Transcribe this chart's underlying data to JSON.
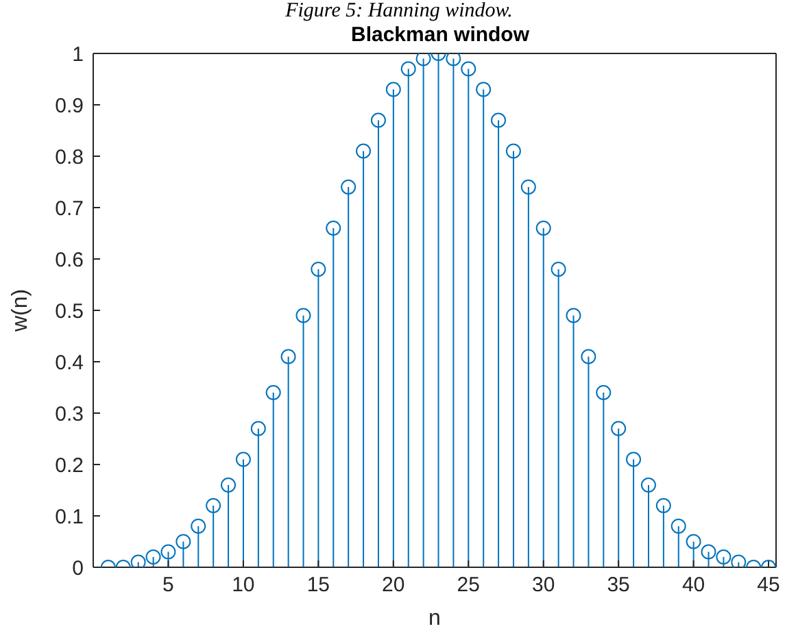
{
  "chart_data": {
    "type": "lollipop",
    "title": "Blackman window",
    "xlabel": "n",
    "ylabel": "w(n)",
    "annotations": [
      "Figure 5: Hanning window."
    ],
    "x": [
      1,
      2,
      3,
      4,
      5,
      6,
      7,
      8,
      9,
      10,
      11,
      12,
      13,
      14,
      15,
      16,
      17,
      18,
      19,
      20,
      21,
      22,
      23,
      24,
      25,
      26,
      27,
      28,
      29,
      30,
      31,
      32,
      33,
      34,
      35,
      36,
      37,
      38,
      39,
      40,
      41,
      42,
      43,
      44,
      45
    ],
    "series": [
      {
        "color": "#0072bd",
        "values": [
          0,
          0,
          0.01,
          0.02,
          0.03,
          0.05,
          0.08,
          0.12,
          0.16,
          0.21,
          0.27,
          0.34,
          0.41,
          0.49,
          0.58,
          0.66,
          0.74,
          0.81,
          0.87,
          0.93,
          0.97,
          0.99,
          1,
          0.99,
          0.97,
          0.93,
          0.87,
          0.81,
          0.74,
          0.66,
          0.58,
          0.49,
          0.41,
          0.34,
          0.27,
          0.21,
          0.16,
          0.12,
          0.08,
          0.05,
          0.03,
          0.02,
          0.01,
          0,
          0
        ]
      }
    ],
    "xlim": [
      0,
      45.5
    ],
    "xticks": [
      5,
      10,
      15,
      20,
      25,
      30,
      35,
      40,
      45
    ],
    "ylim": [
      0,
      1
    ],
    "yticks": [
      0,
      0.1,
      0.2,
      0.3,
      0.4,
      0.5,
      0.6,
      0.7,
      0.8,
      0.9,
      1
    ],
    "grid": false,
    "legend": false,
    "marker": "circle"
  }
}
